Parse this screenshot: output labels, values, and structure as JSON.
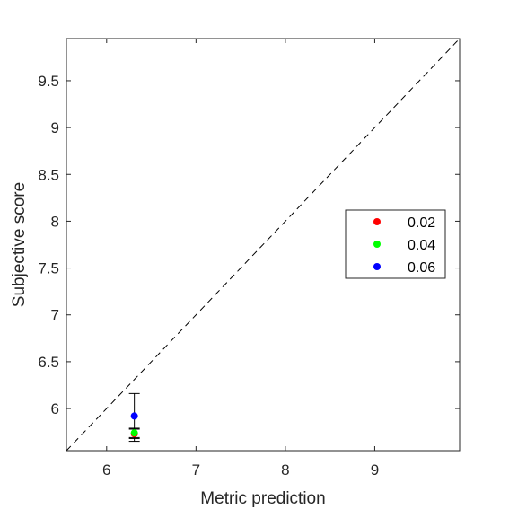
{
  "chart_data": {
    "type": "scatter",
    "title": "",
    "xlabel": "Metric prediction",
    "ylabel": "Subjective score",
    "xlim": [
      5.55,
      9.95
    ],
    "ylim": [
      5.55,
      9.95
    ],
    "xticks": [
      6,
      7,
      8,
      9
    ],
    "yticks": [
      6,
      6.5,
      7,
      7.5,
      8,
      8.5,
      9,
      9.5
    ],
    "grid": false,
    "reference_line": {
      "style": "dashed",
      "from": [
        5.55,
        5.55
      ],
      "to": [
        9.95,
        9.95
      ]
    },
    "legend": {
      "placement": "right"
    },
    "series": [
      {
        "name": "0.02",
        "color": "#ff0000",
        "points": [
          {
            "x": 6.31,
            "y": 5.73,
            "err_low": 0.05,
            "err_high": 0.05
          }
        ]
      },
      {
        "name": "0.04",
        "color": "#00ff00",
        "points": [
          {
            "x": 6.31,
            "y": 5.74,
            "err_low": 0.05,
            "err_high": 0.05
          }
        ]
      },
      {
        "name": "0.06",
        "color": "#0000ff",
        "points": [
          {
            "x": 6.31,
            "y": 5.92,
            "err_low": 0.27,
            "err_high": 0.24
          }
        ]
      }
    ]
  }
}
